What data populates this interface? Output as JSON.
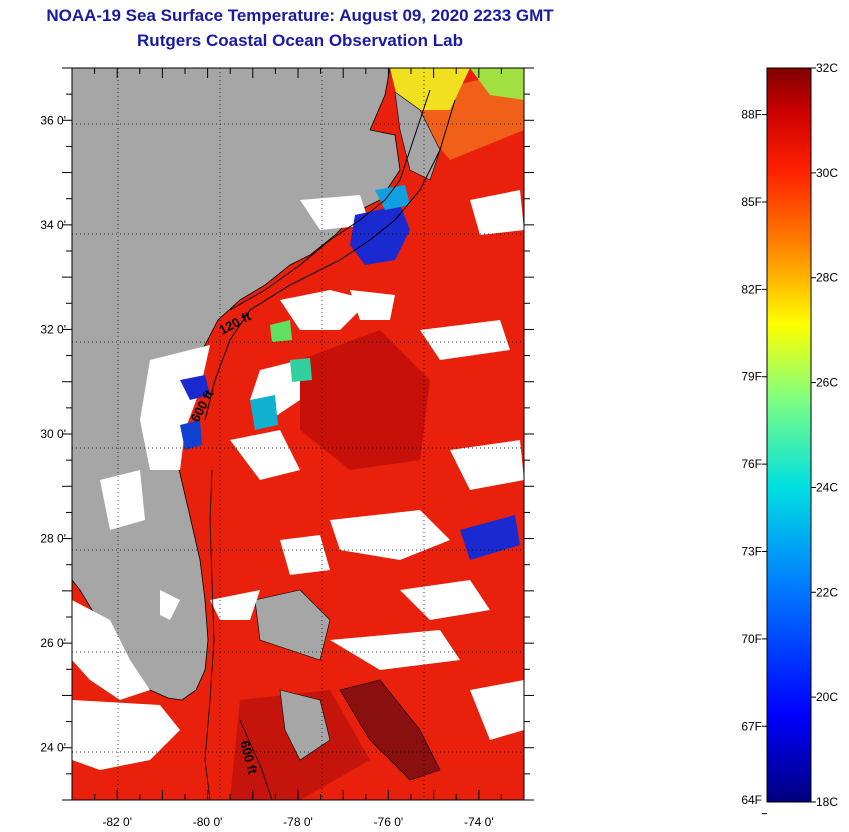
{
  "title": {
    "line1": "NOAA-19 Sea Surface Temperature:  August 09, 2020 2233 GMT",
    "line2": "Rutgers Coastal Ocean Observation Lab"
  },
  "map": {
    "lon_range": [
      -83,
      -73
    ],
    "lat_range": [
      23,
      37
    ],
    "x_ticks": [
      {
        "value": -82,
        "label": "-82 0'"
      },
      {
        "value": -80,
        "label": "-80 0'"
      },
      {
        "value": -78,
        "label": "-78 0'"
      },
      {
        "value": -76,
        "label": "-76 0'"
      },
      {
        "value": -74,
        "label": "-74 0'"
      }
    ],
    "y_ticks": [
      {
        "value": 36,
        "label": "36 0'"
      },
      {
        "value": 34,
        "label": "34 0'"
      },
      {
        "value": 32,
        "label": "32 0'"
      },
      {
        "value": 30,
        "label": "30 0'"
      },
      {
        "value": 28,
        "label": "28 0'"
      },
      {
        "value": 26,
        "label": "26 0'"
      },
      {
        "value": 24,
        "label": "24 0'"
      }
    ],
    "annotations": [
      "120 ft",
      "600 ft",
      "600 ft"
    ],
    "colors": {
      "land": "#a6a6a6",
      "cloud": "#ffffff",
      "ocean": "#e8200c"
    }
  },
  "colorbar": {
    "celsius_labels": [
      "32C",
      "30C",
      "28C",
      "26C",
      "24C",
      "22C",
      "20C",
      "18C"
    ],
    "fahrenheit_labels": [
      "88F",
      "85F",
      "82F",
      "79F",
      "76F",
      "73F",
      "70F",
      "67F",
      "64F"
    ],
    "range_c": [
      18,
      32
    ]
  }
}
